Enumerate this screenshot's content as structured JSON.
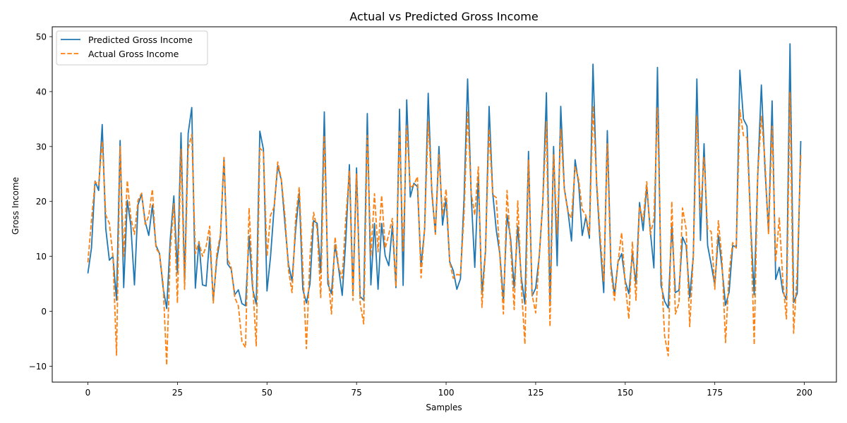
{
  "chart_data": {
    "type": "line",
    "title": "Actual vs Predicted Gross Income",
    "xlabel": "Samples",
    "ylabel": "Gross Income",
    "xlim": [
      -9.95,
      208.95
    ],
    "ylim": [
      -12.9,
      51.8
    ],
    "xticks": [
      0,
      25,
      50,
      75,
      100,
      125,
      150,
      175,
      200
    ],
    "yticks": [
      -10,
      0,
      10,
      20,
      30,
      40,
      50
    ],
    "grid": false,
    "legend_position": "top-left",
    "series": [
      {
        "name": "Predicted Gross Income",
        "color": "#1f77b4",
        "style": "solid",
        "values": [
          6.9,
          11.5,
          23.7,
          22.0,
          34.0,
          15.0,
          9.3,
          10.0,
          2.0,
          31.1,
          4.3,
          20.2,
          15.6,
          4.8,
          19.4,
          21.3,
          16.3,
          13.8,
          19.3,
          12.0,
          10.5,
          4.3,
          0.5,
          13.1,
          21.0,
          7.0,
          32.5,
          5.6,
          32.4,
          37.1,
          4.2,
          12.7,
          4.8,
          4.6,
          13.5,
          2.0,
          9.5,
          13.5,
          28.0,
          8.6,
          7.7,
          3.0,
          3.9,
          1.4,
          1.0,
          13.7,
          4.0,
          1.3,
          32.8,
          29.5,
          3.7,
          10.0,
          19.0,
          26.5,
          23.9,
          16.0,
          8.5,
          5.5,
          14.9,
          21.5,
          4.0,
          1.5,
          5.0,
          16.5,
          16.0,
          7.0,
          36.3,
          5.0,
          3.2,
          12.1,
          7.8,
          2.9,
          13.0,
          26.7,
          3.5,
          26.1,
          2.7,
          2.0,
          36.0,
          4.8,
          16.0,
          4.0,
          16.0,
          10.1,
          8.3,
          15.6,
          4.3,
          36.8,
          4.7,
          38.5,
          20.8,
          23.3,
          22.7,
          8.1,
          15.0,
          39.7,
          21.7,
          14.2,
          30.0,
          15.7,
          20.5,
          9.0,
          7.4,
          4.0,
          5.9,
          20.4,
          42.3,
          21.1,
          8.0,
          24.5,
          3.2,
          11.0,
          37.3,
          21.6,
          14.8,
          10.4,
          1.8,
          17.5,
          13.3,
          4.3,
          15.5,
          6.0,
          1.3,
          29.1,
          2.8,
          4.2,
          10.0,
          20.0,
          39.8,
          1.0,
          30.0,
          8.3,
          37.3,
          22.3,
          18.3,
          12.8,
          27.6,
          23.2,
          13.8,
          17.2,
          13.3,
          45.0,
          23.3,
          12.3,
          3.4,
          32.9,
          8.5,
          2.9,
          9.0,
          10.5,
          5.5,
          3.2,
          10.5,
          5.0,
          19.8,
          14.7,
          22.8,
          14.6,
          7.9,
          44.4,
          4.7,
          1.8,
          0.6,
          15.6,
          3.4,
          3.8,
          13.5,
          12.0,
          2.5,
          10.0,
          42.3,
          12.9,
          30.5,
          12.0,
          8.5,
          4.8,
          13.8,
          8.0,
          1.1,
          3.5,
          12.0,
          11.6,
          43.9,
          35.0,
          33.7,
          16.0,
          3.0,
          25.0,
          41.2,
          26.0,
          14.5,
          38.3,
          5.8,
          8.0,
          3.5,
          2.1,
          48.7,
          1.6,
          3.2,
          31.0
        ]
      },
      {
        "name": "Actual Gross Income",
        "color": "#ff7f0e",
        "style": "dashed",
        "values": [
          8.9,
          16.5,
          23.6,
          23.0,
          31.0,
          17.5,
          16.0,
          10.0,
          -8.0,
          30.0,
          10.0,
          23.8,
          17.0,
          14.0,
          20.2,
          21.5,
          15.8,
          17.4,
          22.2,
          11.5,
          10.5,
          5.0,
          -9.8,
          11.0,
          19.6,
          1.5,
          29.5,
          4.0,
          29.6,
          32.2,
          10.5,
          12.6,
          10.0,
          11.8,
          15.5,
          1.5,
          10.5,
          14.0,
          28.0,
          9.5,
          8.0,
          2.5,
          1.0,
          -5.5,
          -6.6,
          18.8,
          5.0,
          -6.3,
          29.7,
          29.0,
          10.0,
          17.5,
          19.0,
          27.2,
          24.0,
          17.5,
          7.5,
          3.4,
          17.0,
          22.6,
          8.0,
          -6.8,
          10.0,
          18.0,
          15.0,
          2.5,
          32.0,
          7.0,
          -0.5,
          13.5,
          8.0,
          6.0,
          17.0,
          25.5,
          2.0,
          25.0,
          1.5,
          -2.3,
          32.0,
          10.0,
          21.4,
          10.8,
          21.1,
          11.5,
          14.0,
          16.9,
          4.5,
          33.0,
          11.0,
          33.8,
          22.5,
          23.0,
          24.5,
          6.1,
          15.0,
          34.5,
          22.5,
          14.0,
          28.5,
          17.5,
          22.2,
          9.0,
          6.0,
          6.7,
          6.6,
          17.5,
          36.5,
          21.5,
          17.5,
          26.3,
          0.7,
          11.0,
          33.2,
          21.2,
          20.7,
          10.0,
          -0.5,
          22.0,
          12.0,
          0.3,
          20.1,
          4.5,
          -6.0,
          27.5,
          3.0,
          -0.3,
          10.1,
          20.0,
          34.5,
          -2.8,
          28.5,
          14.1,
          33.1,
          22.3,
          18.0,
          17.0,
          26.3,
          24.0,
          18.5,
          17.5,
          14.0,
          37.4,
          24.0,
          13.7,
          5.5,
          30.5,
          7.3,
          2.0,
          9.0,
          14.3,
          5.0,
          -1.4,
          12.6,
          2.0,
          19.1,
          16.5,
          23.6,
          14.0,
          16.7,
          37.0,
          8.0,
          -4.5,
          -8.1,
          20.0,
          -0.5,
          1.5,
          18.8,
          15.0,
          -2.8,
          10.0,
          35.5,
          18.0,
          28.0,
          15.0,
          14.5,
          4.0,
          16.5,
          9.5,
          -5.7,
          7.0,
          12.5,
          11.5,
          36.7,
          32.0,
          31.6,
          16.0,
          -6.1,
          25.0,
          35.5,
          27.5,
          14.0,
          33.7,
          9.0,
          17.0,
          5.5,
          -1.4,
          39.9,
          -4.0,
          7.0,
          28.5
        ]
      }
    ]
  }
}
